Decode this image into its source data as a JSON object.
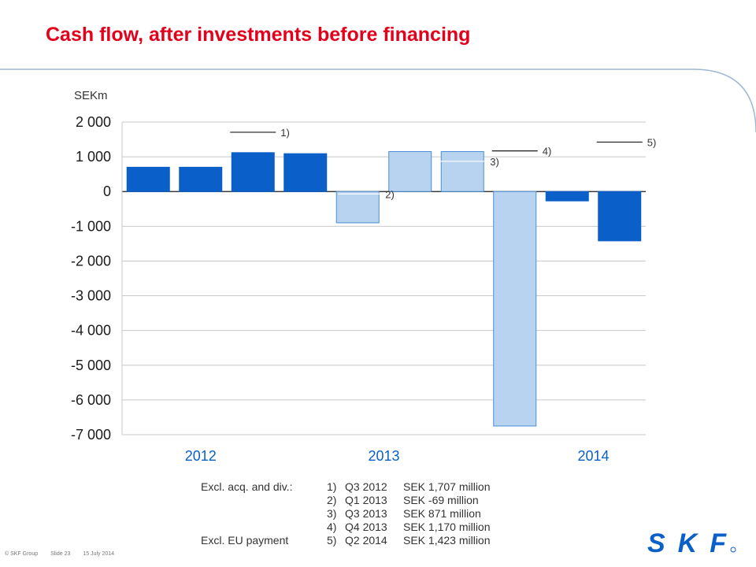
{
  "title": "Cash flow, after investments before financing",
  "unit": "SEKm",
  "chart_data": {
    "type": "bar",
    "yunit": "SEKm",
    "ylim": [
      -7000,
      2000
    ],
    "yticks": [
      2000,
      1000,
      0,
      -1000,
      -2000,
      -3000,
      -4000,
      -5000,
      -6000,
      -7000
    ],
    "ytick_labels": [
      "2 000",
      "1 000",
      "0",
      "-1 000",
      "-2 000",
      "-3 000",
      "-4 000",
      "-5 000",
      "-6 000",
      "-7 000"
    ],
    "grid": true,
    "year_labels": [
      {
        "label": "2012",
        "under_bar": 1
      },
      {
        "label": "2013",
        "under_bar": 5
      },
      {
        "label": "2014",
        "under_bar": 8.5
      }
    ],
    "bars": [
      {
        "value": 700,
        "highlight": true
      },
      {
        "value": 700,
        "highlight": true
      },
      {
        "value": 1120,
        "highlight": true
      },
      {
        "value": 1090,
        "highlight": true
      },
      {
        "value": -900,
        "highlight": false
      },
      {
        "value": 1150,
        "highlight": false
      },
      {
        "value": 1150,
        "highlight": false
      },
      {
        "value": -6750,
        "highlight": false
      },
      {
        "value": -270,
        "highlight": true
      },
      {
        "value": -1420,
        "highlight": true
      }
    ],
    "markers": [
      {
        "label": "1)",
        "bar": 2,
        "value": 1707
      },
      {
        "label": "2)",
        "bar": 4,
        "value": -69
      },
      {
        "label": "3)",
        "bar": 6,
        "value": 871
      },
      {
        "label": "4)",
        "bar": 7,
        "value": 1170
      },
      {
        "label": "5)",
        "bar": 9,
        "value": 1423
      }
    ],
    "colors": {
      "highlight": "#0a5fc9",
      "normal": "#b7d3f0",
      "normal_border": "#4a8ed6",
      "grid": "#c8c8c8"
    }
  },
  "notes": [
    {
      "lead": "Excl. acq. and div.:",
      "num": "1)",
      "quarter": "Q3 2012",
      "amount": "SEK 1,707 million"
    },
    {
      "lead": "",
      "num": "2)",
      "quarter": "Q1 2013",
      "amount": "SEK -69 million"
    },
    {
      "lead": "",
      "num": "3)",
      "quarter": "Q3 2013",
      "amount": "SEK 871 million"
    },
    {
      "lead": "",
      "num": "4)",
      "quarter": "Q4 2013",
      "amount": "SEK 1,170 million"
    },
    {
      "lead": "Excl. EU payment",
      "num": "5)",
      "quarter": "Q2 2014",
      "amount": "SEK 1,423 million"
    }
  ],
  "footer": {
    "copyright": "© SKF Group",
    "slide": "Slide 23",
    "date": "15 July 2014"
  },
  "logo_text": "SKF"
}
